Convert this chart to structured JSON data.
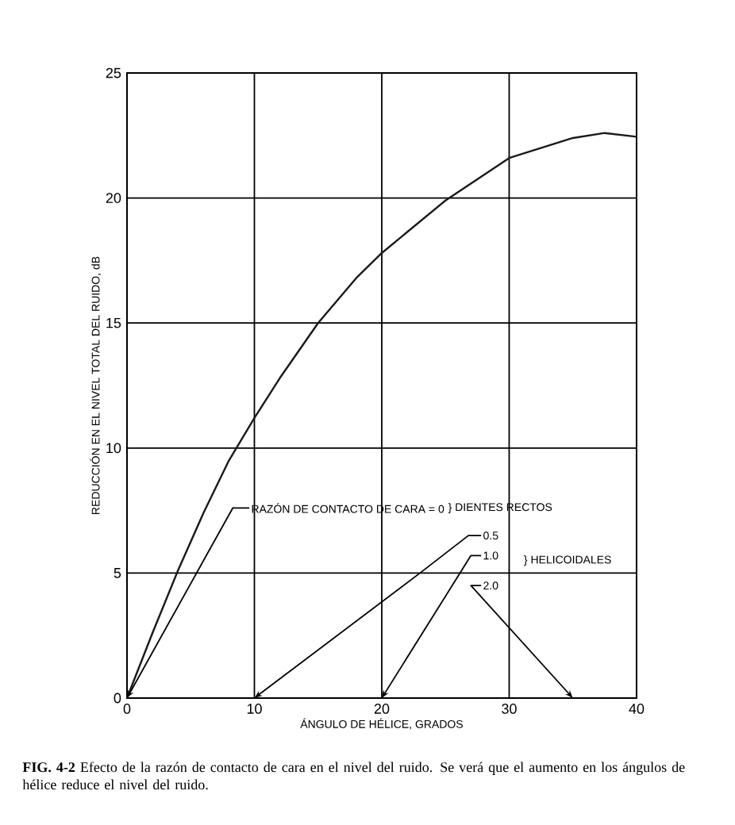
{
  "chart_data": {
    "type": "line",
    "x": [
      0,
      2,
      4,
      6,
      8,
      10,
      12,
      15,
      18,
      20,
      25,
      30,
      35,
      37.5,
      40
    ],
    "series": [
      {
        "color": "#1a1a1a",
        "values": [
          0,
          2.6,
          5.1,
          7.4,
          9.5,
          11.2,
          12.8,
          15.0,
          16.8,
          17.8,
          19.9,
          21.6,
          22.4,
          22.6,
          22.45
        ]
      }
    ],
    "xlabel": "ÁNGULO DE HÉLICE, GRADOS",
    "ylabel": "REDUCCIÓN EN EL NIVEL TOTAL DEL RUIDO, dB",
    "xlim": [
      0,
      40
    ],
    "ylim": [
      0,
      25
    ],
    "xticks": [
      0,
      10,
      20,
      30,
      40
    ],
    "yticks": [
      0,
      5,
      10,
      15,
      20,
      25
    ],
    "grid": true,
    "marker": "none",
    "line_style": "solid",
    "annotations": [
      {
        "text": "RAZÓN DE CONTACTO DE CARA = 0",
        "x": 0,
        "y": 0
      },
      "} DIENTES RECTOS",
      "0.5",
      "1.0",
      "2.0",
      "} HELICOIDALES",
      "**FIG. 4-2** Efecto de la razón de contacto de cara en el nivel del ruido. Se verá que el aumento en los ángulos de hélice reduce el nivel del ruido."
    ]
  }
}
